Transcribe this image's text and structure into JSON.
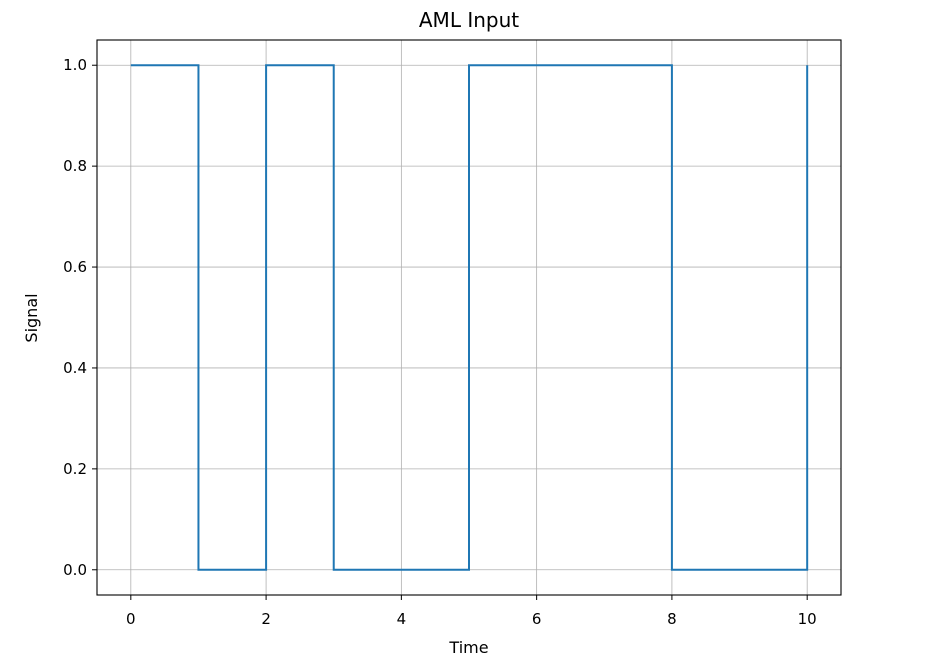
{
  "chart_data": {
    "type": "line",
    "step": "post",
    "title": "AML Input",
    "xlabel": "Time",
    "ylabel": "Signal",
    "xlim": [
      -0.5,
      10.5
    ],
    "ylim": [
      -0.05,
      1.05
    ],
    "xticks": [
      0,
      2,
      4,
      6,
      8,
      10
    ],
    "xtick_labels": [
      "0",
      "2",
      "4",
      "6",
      "8",
      "10"
    ],
    "yticks": [
      0.0,
      0.2,
      0.4,
      0.6,
      0.8,
      1.0
    ],
    "ytick_labels": [
      "0.0",
      "0.2",
      "0.4",
      "0.6",
      "0.8",
      "1.0"
    ],
    "grid": true,
    "series": [
      {
        "x": [
          0,
          1,
          2,
          3,
          4,
          5,
          6,
          7,
          8,
          9,
          10
        ],
        "y": [
          1,
          0,
          1,
          0,
          0,
          1,
          1,
          1,
          0,
          0,
          1
        ],
        "color": "#1f77b4"
      }
    ]
  }
}
